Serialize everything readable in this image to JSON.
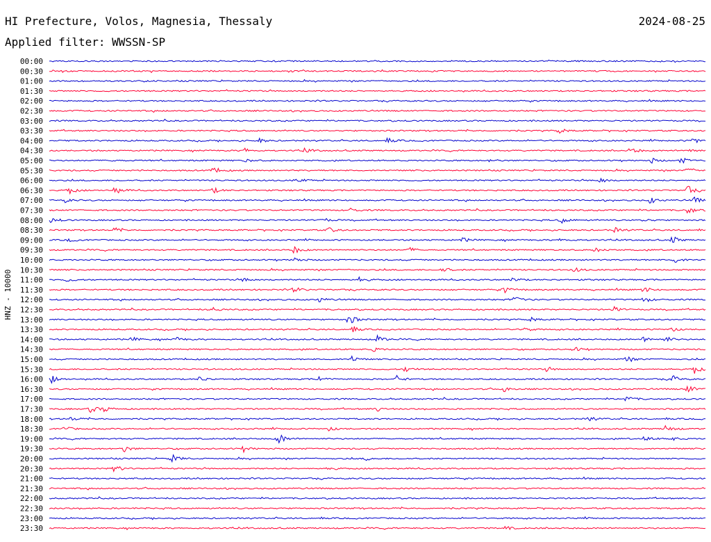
{
  "header": {
    "station": "HI Prefecture, Volos, Magnesia, Thessaly",
    "date": "2024-08-25",
    "filter": "Applied filter: WWSSN-SP"
  },
  "chart_data": {
    "type": "line",
    "title": "HI Prefecture, Volos, Magnesia, Thessaly",
    "subtitle": "Applied filter: WWSSN-SP",
    "ylabel": "HNZ - 10000",
    "xlabel": "",
    "colors": [
      "#0000cc",
      "#ff0033"
    ],
    "row_minutes": 30,
    "rows": [
      {
        "time": "00:00",
        "color": "#0000cc",
        "events": []
      },
      {
        "time": "00:30",
        "color": "#ff0033",
        "events": []
      },
      {
        "time": "01:00",
        "color": "#0000cc",
        "events": []
      },
      {
        "time": "01:30",
        "color": "#ff0033",
        "events": []
      },
      {
        "time": "02:00",
        "color": "#0000cc",
        "events": []
      },
      {
        "time": "02:30",
        "color": "#ff0033",
        "events": []
      },
      {
        "time": "03:00",
        "color": "#0000cc",
        "events": []
      },
      {
        "time": "03:30",
        "color": "#ff0033",
        "events": [
          {
            "minute": 23.3,
            "amp": 4
          }
        ]
      },
      {
        "time": "04:00",
        "color": "#0000cc",
        "events": [
          {
            "minute": 9.6,
            "amp": 3
          },
          {
            "minute": 15.5,
            "amp": 3
          },
          {
            "minute": 29.5,
            "amp": 6
          }
        ]
      },
      {
        "time": "04:30",
        "color": "#ff0033",
        "events": [
          {
            "minute": 8.9,
            "amp": 4
          },
          {
            "minute": 11.7,
            "amp": 3
          },
          {
            "minute": 26.6,
            "amp": 5
          },
          {
            "minute": 29.2,
            "amp": 4
          }
        ]
      },
      {
        "time": "05:00",
        "color": "#0000cc",
        "events": [
          {
            "minute": 2.8,
            "amp": 2
          },
          {
            "minute": 9.0,
            "amp": 3
          },
          {
            "minute": 20.2,
            "amp": 2
          },
          {
            "minute": 27.5,
            "amp": 4
          },
          {
            "minute": 28.9,
            "amp": 4
          }
        ]
      },
      {
        "time": "05:30",
        "color": "#ff0033",
        "events": [
          {
            "minute": 7.5,
            "amp": 4
          },
          {
            "minute": 29.2,
            "amp": 4
          }
        ]
      },
      {
        "time": "06:00",
        "color": "#0000cc",
        "events": [
          {
            "minute": 11.3,
            "amp": 4
          },
          {
            "minute": 25.2,
            "amp": 4
          }
        ]
      },
      {
        "time": "06:30",
        "color": "#ff0033",
        "events": [
          {
            "minute": 0.9,
            "amp": 5
          },
          {
            "minute": 3.0,
            "amp": 5
          },
          {
            "minute": 7.5,
            "amp": 4
          },
          {
            "minute": 29.2,
            "amp": 6
          }
        ]
      },
      {
        "time": "07:00",
        "color": "#0000cc",
        "events": [
          {
            "minute": 0.7,
            "amp": 3
          },
          {
            "minute": 27.5,
            "amp": 5
          },
          {
            "minute": 29.5,
            "amp": 4
          }
        ]
      },
      {
        "time": "07:30",
        "color": "#ff0033",
        "events": [
          {
            "minute": 13.8,
            "amp": 3
          },
          {
            "minute": 29.2,
            "amp": 6
          }
        ]
      },
      {
        "time": "08:00",
        "color": "#0000cc",
        "events": [
          {
            "minute": 0.1,
            "amp": 4
          },
          {
            "minute": 12.5,
            "amp": 3
          },
          {
            "minute": 23.4,
            "amp": 4
          },
          {
            "minute": 27.2,
            "amp": 3
          }
        ]
      },
      {
        "time": "08:30",
        "color": "#ff0033",
        "events": [
          {
            "minute": 3.0,
            "amp": 3
          },
          {
            "minute": 12.8,
            "amp": 4
          },
          {
            "minute": 25.8,
            "amp": 4
          }
        ]
      },
      {
        "time": "09:00",
        "color": "#0000cc",
        "events": [
          {
            "minute": 0.9,
            "amp": 2
          },
          {
            "minute": 18.9,
            "amp": 3
          },
          {
            "minute": 23.4,
            "amp": 3
          },
          {
            "minute": 28.5,
            "amp": 5
          }
        ]
      },
      {
        "time": "09:30",
        "color": "#ff0033",
        "events": [
          {
            "minute": 11.2,
            "amp": 5
          },
          {
            "minute": 16.5,
            "amp": 3
          },
          {
            "minute": 25.0,
            "amp": 4
          }
        ]
      },
      {
        "time": "10:00",
        "color": "#0000cc",
        "events": [
          {
            "minute": 11.2,
            "amp": 4
          },
          {
            "minute": 28.6,
            "amp": 5
          }
        ]
      },
      {
        "time": "10:30",
        "color": "#ff0033",
        "events": [
          {
            "minute": 18.0,
            "amp": 4
          },
          {
            "minute": 24.0,
            "amp": 3
          }
        ]
      },
      {
        "time": "11:00",
        "color": "#0000cc",
        "events": [
          {
            "minute": 0.8,
            "amp": 3
          },
          {
            "minute": 8.9,
            "amp": 3
          },
          {
            "minute": 14.2,
            "amp": 4
          },
          {
            "minute": 21.2,
            "amp": 3
          }
        ]
      },
      {
        "time": "11:30",
        "color": "#ff0033",
        "events": [
          {
            "minute": 11.2,
            "amp": 4
          },
          {
            "minute": 20.8,
            "amp": 4
          },
          {
            "minute": 27.2,
            "amp": 4
          }
        ]
      },
      {
        "time": "12:00",
        "color": "#0000cc",
        "events": [
          {
            "minute": 12.3,
            "amp": 4
          },
          {
            "minute": 21.3,
            "amp": 5
          },
          {
            "minute": 27.2,
            "amp": 4
          }
        ]
      },
      {
        "time": "12:30",
        "color": "#ff0033",
        "events": [
          {
            "minute": 7.5,
            "amp": 3
          },
          {
            "minute": 25.8,
            "amp": 4
          }
        ]
      },
      {
        "time": "13:00",
        "color": "#0000cc",
        "events": [
          {
            "minute": 13.7,
            "amp": 8
          },
          {
            "minute": 22.0,
            "amp": 3
          }
        ]
      },
      {
        "time": "13:30",
        "color": "#ff0033",
        "events": [
          {
            "minute": 13.8,
            "amp": 5
          },
          {
            "minute": 21.7,
            "amp": 4
          },
          {
            "minute": 28.4,
            "amp": 4
          }
        ]
      },
      {
        "time": "14:00",
        "color": "#0000cc",
        "events": [
          {
            "minute": 3.8,
            "amp": 3
          },
          {
            "minute": 5.8,
            "amp": 3
          },
          {
            "minute": 15.0,
            "amp": 5
          },
          {
            "minute": 27.2,
            "amp": 4
          },
          {
            "minute": 28.2,
            "amp": 4
          }
        ]
      },
      {
        "time": "14:30",
        "color": "#ff0033",
        "events": [
          {
            "minute": 14.8,
            "amp": 3
          },
          {
            "minute": 24.0,
            "amp": 3
          }
        ]
      },
      {
        "time": "15:00",
        "color": "#0000cc",
        "events": [
          {
            "minute": 13.8,
            "amp": 5
          },
          {
            "minute": 26.4,
            "amp": 4
          }
        ]
      },
      {
        "time": "15:30",
        "color": "#ff0033",
        "events": [
          {
            "minute": 16.3,
            "amp": 4
          },
          {
            "minute": 22.7,
            "amp": 3
          },
          {
            "minute": 29.5,
            "amp": 6
          }
        ]
      },
      {
        "time": "16:00",
        "color": "#0000cc",
        "events": [
          {
            "minute": 0.1,
            "amp": 5
          },
          {
            "minute": 6.9,
            "amp": 4
          },
          {
            "minute": 12.3,
            "amp": 4
          },
          {
            "minute": 15.9,
            "amp": 5
          },
          {
            "minute": 28.5,
            "amp": 5
          }
        ]
      },
      {
        "time": "16:30",
        "color": "#ff0033",
        "events": [
          {
            "minute": 20.8,
            "amp": 4
          },
          {
            "minute": 29.2,
            "amp": 6
          }
        ]
      },
      {
        "time": "17:00",
        "color": "#0000cc",
        "events": [
          {
            "minute": 26.4,
            "amp": 5
          }
        ]
      },
      {
        "time": "17:30",
        "color": "#ff0033",
        "events": [
          {
            "minute": 1.9,
            "amp": 5
          },
          {
            "minute": 2.5,
            "amp": 4
          },
          {
            "minute": 15.0,
            "amp": 3
          }
        ]
      },
      {
        "time": "18:00",
        "color": "#0000cc",
        "events": [
          {
            "minute": 1.0,
            "amp": 3
          },
          {
            "minute": 24.7,
            "amp": 3
          }
        ]
      },
      {
        "time": "18:30",
        "color": "#ff0033",
        "events": [
          {
            "minute": 0.7,
            "amp": 3
          },
          {
            "minute": 12.8,
            "amp": 3
          },
          {
            "minute": 28.2,
            "amp": 5
          }
        ]
      },
      {
        "time": "19:00",
        "color": "#0000cc",
        "events": [
          {
            "minute": 10.5,
            "amp": 8
          },
          {
            "minute": 27.2,
            "amp": 4
          },
          {
            "minute": 28.4,
            "amp": 3
          }
        ]
      },
      {
        "time": "19:30",
        "color": "#ff0033",
        "events": [
          {
            "minute": 3.4,
            "amp": 5
          },
          {
            "minute": 8.9,
            "amp": 4
          }
        ]
      },
      {
        "time": "20:00",
        "color": "#0000cc",
        "events": [
          {
            "minute": 5.6,
            "amp": 6
          },
          {
            "minute": 14.5,
            "amp": 2
          }
        ]
      },
      {
        "time": "20:30",
        "color": "#ff0033",
        "events": [
          {
            "minute": 3.0,
            "amp": 5
          },
          {
            "minute": 12.8,
            "amp": 3
          }
        ]
      },
      {
        "time": "21:00",
        "color": "#0000cc",
        "events": []
      },
      {
        "time": "21:30",
        "color": "#ff0033",
        "events": []
      },
      {
        "time": "22:00",
        "color": "#0000cc",
        "events": []
      },
      {
        "time": "22:30",
        "color": "#ff0033",
        "events": []
      },
      {
        "time": "23:00",
        "color": "#0000cc",
        "events": []
      },
      {
        "time": "23:30",
        "color": "#ff0033",
        "events": [
          {
            "minute": 20.8,
            "amp": 3
          }
        ]
      }
    ]
  }
}
